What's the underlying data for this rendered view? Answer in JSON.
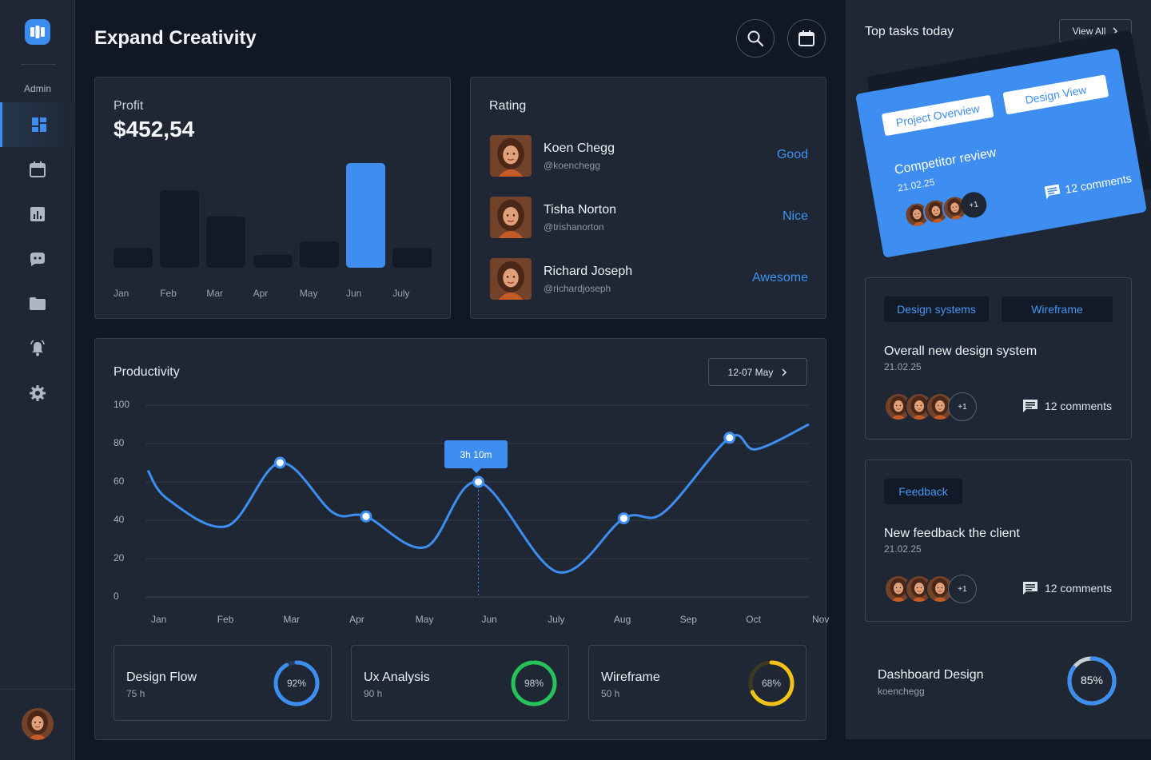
{
  "sidebar": {
    "role_label": "Admin",
    "items": [
      {
        "icon": "dashboard-icon",
        "active": true
      },
      {
        "icon": "calendar-icon",
        "active": false
      },
      {
        "icon": "analytics-icon",
        "active": false
      },
      {
        "icon": "chat-icon",
        "active": false
      },
      {
        "icon": "folder-icon",
        "active": false
      },
      {
        "icon": "notification-bell-icon",
        "active": false
      },
      {
        "icon": "gear-icon",
        "active": false
      }
    ]
  },
  "header": {
    "title": "Expand Creativity",
    "search_icon": "search-icon",
    "calendar_icon": "calendar-icon"
  },
  "profit": {
    "label": "Profit",
    "value": "$452,54",
    "chart_data": {
      "type": "bar",
      "categories": [
        "Jan",
        "Feb",
        "Mar",
        "Apr",
        "May",
        "Jun",
        "July"
      ],
      "values": [
        19,
        74,
        49,
        12,
        25,
        100,
        19
      ],
      "highlight_index": 5,
      "ylim": [
        0,
        100
      ],
      "colors": {
        "bar": "#121a26",
        "highlight": "#3d8ef0"
      }
    }
  },
  "rating": {
    "title": "Rating",
    "rows": [
      {
        "name": "Koen Chegg",
        "handle": "@koenchegg",
        "tag": "Good"
      },
      {
        "name": "Tisha Norton",
        "handle": "@trishanorton",
        "tag": "Nice"
      },
      {
        "name": "Richard Joseph",
        "handle": "@richardjoseph",
        "tag": "Awesome"
      }
    ]
  },
  "productivity": {
    "title": "Productivity",
    "date_range": "12-07 May",
    "tooltip": "3h 10m",
    "chart_data": {
      "type": "line",
      "x": [
        "Jan",
        "Feb",
        "Mar",
        "Apr",
        "May",
        "Jun",
        "July",
        "Aug",
        "Sep",
        "Oct",
        "Nov"
      ],
      "y_ticks": [
        100,
        80,
        60,
        40,
        20,
        0
      ],
      "ylim": [
        0,
        100
      ],
      "grid": true,
      "curve": [
        {
          "x": 0.0,
          "y": 66
        },
        {
          "x": 0.3,
          "y": 51
        },
        {
          "x": 1.2,
          "y": 37
        },
        {
          "x": 2.0,
          "y": 70
        },
        {
          "x": 2.8,
          "y": 44
        },
        {
          "x": 3.3,
          "y": 42
        },
        {
          "x": 4.2,
          "y": 26
        },
        {
          "x": 5.0,
          "y": 60
        },
        {
          "x": 6.2,
          "y": 13
        },
        {
          "x": 7.2,
          "y": 41
        },
        {
          "x": 7.8,
          "y": 44
        },
        {
          "x": 8.8,
          "y": 83
        },
        {
          "x": 9.2,
          "y": 77
        },
        {
          "x": 10.0,
          "y": 90
        }
      ],
      "markers": [
        {
          "x": 2.0,
          "y": 70
        },
        {
          "x": 3.3,
          "y": 42
        },
        {
          "x": 5.0,
          "y": 60
        },
        {
          "x": 7.2,
          "y": 41
        },
        {
          "x": 8.8,
          "y": 83
        }
      ],
      "active_x": 5.0,
      "color": "#3d8ef0"
    },
    "stats": [
      {
        "title": "Design Flow",
        "hours": "75 h",
        "percent": 92,
        "label": "92%",
        "color": "#3d8ef0",
        "track": "#2a3a55"
      },
      {
        "title": "Ux Analysis",
        "hours": "90 h",
        "percent": 98,
        "label": "98%",
        "color": "#27c25b",
        "track": "#1f3f2c"
      },
      {
        "title": "Wireframe",
        "hours": "50 h",
        "percent": 68,
        "label": "68%",
        "color": "#f2c21b",
        "track": "#3d3a22"
      }
    ]
  },
  "tasks": {
    "title": "Top tasks today",
    "view_all": "View All",
    "featured": {
      "chips": [
        "Project Overview",
        "Design View"
      ],
      "title": "Competitor review",
      "date": "21.02.25",
      "more": "+1",
      "comments": "12 comments"
    },
    "cards": [
      {
        "chips": [
          "Design systems",
          "Wireframe"
        ],
        "title": "Overall new design system",
        "date": "21.02.25",
        "more": "+1",
        "comments": "12 comments"
      },
      {
        "chips": [
          "Feedback"
        ],
        "title": "New feedback the client",
        "date": "21.02.25",
        "more": "+1",
        "comments": "12 comments"
      }
    ],
    "dashboard": {
      "title": "Dashboard Design",
      "user": "koenchegg",
      "percent": 85,
      "label": "85%",
      "color": "#3d8ef0",
      "track": "#c8cdd3"
    }
  }
}
